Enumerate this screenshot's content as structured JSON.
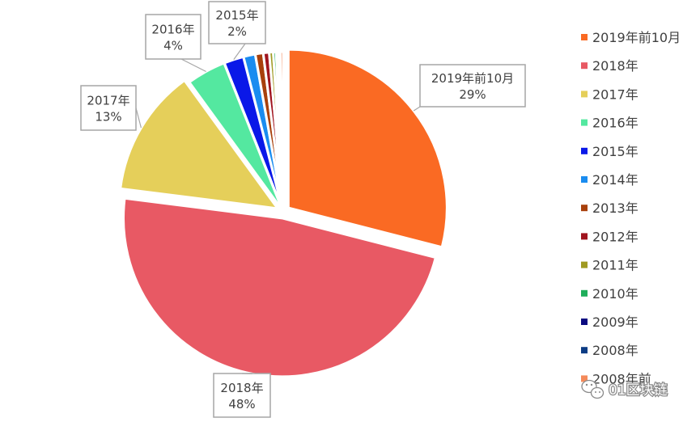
{
  "chart_data": {
    "type": "pie",
    "title": "",
    "slices": [
      {
        "label": "2019年前10月",
        "value": 29,
        "pct_label": "29%",
        "color": "#fa6a23"
      },
      {
        "label": "2018年",
        "value": 48,
        "pct_label": "48%",
        "color": "#e85964"
      },
      {
        "label": "2017年",
        "value": 13,
        "pct_label": "13%",
        "color": "#e5cf5a"
      },
      {
        "label": "2016年",
        "value": 4,
        "pct_label": "4%",
        "color": "#54e8a0"
      },
      {
        "label": "2015年",
        "value": 2,
        "pct_label": "2%",
        "color": "#0a18e8"
      },
      {
        "label": "2014年",
        "value": 1.2,
        "pct_label": "",
        "color": "#1a8cf0"
      },
      {
        "label": "2013年",
        "value": 0.8,
        "pct_label": "",
        "color": "#a8400c"
      },
      {
        "label": "2012年",
        "value": 0.6,
        "pct_label": "",
        "color": "#a0141e"
      },
      {
        "label": "2011年",
        "value": 0.4,
        "pct_label": "",
        "color": "#a09a22"
      },
      {
        "label": "2010年",
        "value": 0.3,
        "pct_label": "",
        "color": "#1eae5a"
      },
      {
        "label": "2009年",
        "value": 0.2,
        "pct_label": "",
        "color": "#0a0a80"
      },
      {
        "label": "2008年",
        "value": 0.2,
        "pct_label": "",
        "color": "#0c3c84"
      },
      {
        "label": "2008年前",
        "value": 0.3,
        "pct_label": "",
        "color": "#f48a5a"
      }
    ],
    "legend_placement": "right"
  },
  "watermark": {
    "text": "01区块链",
    "icon": "wechat-icon"
  }
}
